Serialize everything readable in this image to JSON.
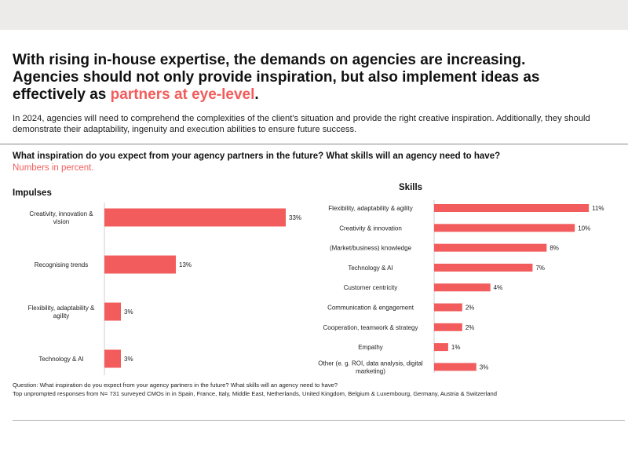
{
  "headline": {
    "line1": "With rising in-house expertise, the demands on agencies are increasing.",
    "line2": "Agencies should not only provide inspiration, but also implement ideas as",
    "line3_prefix": "effectively as ",
    "line3_accent": "partners at eye-level",
    "line3_suffix": "."
  },
  "intro": "In 2024, agencies will need to comprehend the complexities of the client's situation and provide the right creative inspiration. Additionally, they should demonstrate their adaptability, ingenuity and execution abilities to ensure future success.",
  "question": "What inspiration do you expect from your agency partners in the future? What skills will an agency need to have?",
  "unit_note": "Numbers in percent.",
  "colors": {
    "bar": "#f25c5c",
    "accent": "#f25c5c"
  },
  "chart_data": [
    {
      "type": "bar",
      "orientation": "horizontal",
      "title": "Impulses",
      "categories": [
        [
          "Creativity, innovation &",
          "vision"
        ],
        [
          "Recognising trends"
        ],
        [
          "Flexibility, adaptability &",
          "agility"
        ],
        [
          "Technology & AI"
        ]
      ],
      "values": [
        33,
        13,
        3,
        3
      ],
      "value_labels": [
        "33%",
        "13%",
        "3%",
        "3%"
      ],
      "xlim": [
        0,
        40
      ],
      "grid": false,
      "axis_line": true
    },
    {
      "type": "bar",
      "orientation": "horizontal",
      "title": "Skills",
      "categories": [
        [
          "Flexibility, adaptability & agility"
        ],
        [
          "Creativity & innovation"
        ],
        [
          "(Market/business) knowledge"
        ],
        [
          "Technology & AI"
        ],
        [
          "Customer centricity"
        ],
        [
          "Communication & engagement"
        ],
        [
          "Cooperation, teamwork & strategy"
        ],
        [
          "Empathy"
        ],
        [
          "Other (e. g. ROI, data analysis, digital",
          "marketing)"
        ]
      ],
      "values": [
        11,
        10,
        8,
        7,
        4,
        2,
        2,
        1,
        3
      ],
      "value_labels": [
        "11%",
        "10%",
        "8%",
        "7%",
        "4%",
        "2%",
        "2%",
        "1%",
        "3%"
      ],
      "xlim": [
        0,
        12.5
      ],
      "grid": false,
      "axis_line": true
    }
  ],
  "footnote": {
    "line1": "Question: What inspiration do you expect from your agency partners in the future? What skills will an agency need to have?",
    "line2": "Top unprompted responses from N= 731 surveyed CMOs in in Spain, France, Italy, Middle East, Netherlands, United Kingdom, Belgium & Luxembourg, Germany, Austria & Switzerland"
  }
}
